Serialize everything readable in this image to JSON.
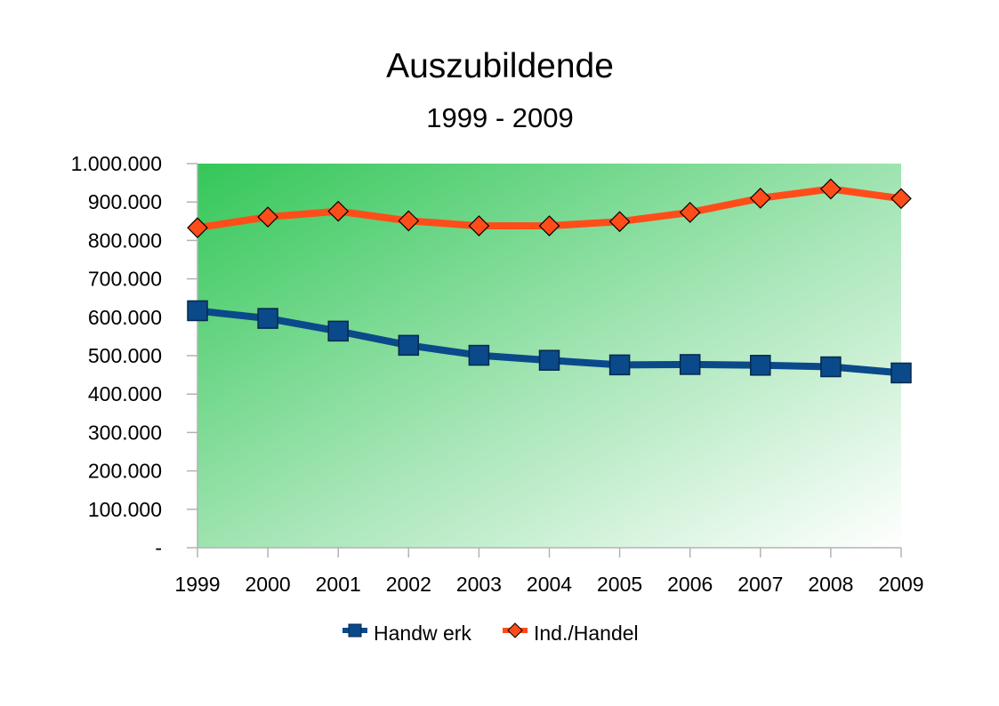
{
  "chart_data": {
    "type": "line",
    "title": "Auszubildende",
    "subtitle": "1999 - 2009",
    "xlabel": "",
    "ylabel": "",
    "categories": [
      "1999",
      "2000",
      "2001",
      "2002",
      "2003",
      "2004",
      "2005",
      "2006",
      "2007",
      "2008",
      "2009"
    ],
    "ylim": [
      0,
      1000000
    ],
    "yticks": [
      0,
      100000,
      200000,
      300000,
      400000,
      500000,
      600000,
      700000,
      800000,
      900000,
      1000000
    ],
    "ytick_labels": [
      "-",
      "100.000",
      "200.000",
      "300.000",
      "400.000",
      "500.000",
      "600.000",
      "700.000",
      "800.000",
      "900.000",
      "1.000.000"
    ],
    "grid": false,
    "plot_background": "gradient green (left) to white (right)",
    "legend_position": "bottom",
    "series": [
      {
        "name": "Handw erk",
        "color": "#0a4a8a",
        "marker": "square",
        "values": [
          617000,
          597000,
          564000,
          527000,
          501000,
          488000,
          476000,
          477000,
          475000,
          471000,
          455000
        ]
      },
      {
        "name": "Ind./Handel",
        "color": "#ff4d1a",
        "marker": "diamond",
        "values": [
          833000,
          861000,
          876000,
          851000,
          838000,
          838000,
          849000,
          873000,
          910000,
          934000,
          909000
        ]
      }
    ]
  }
}
